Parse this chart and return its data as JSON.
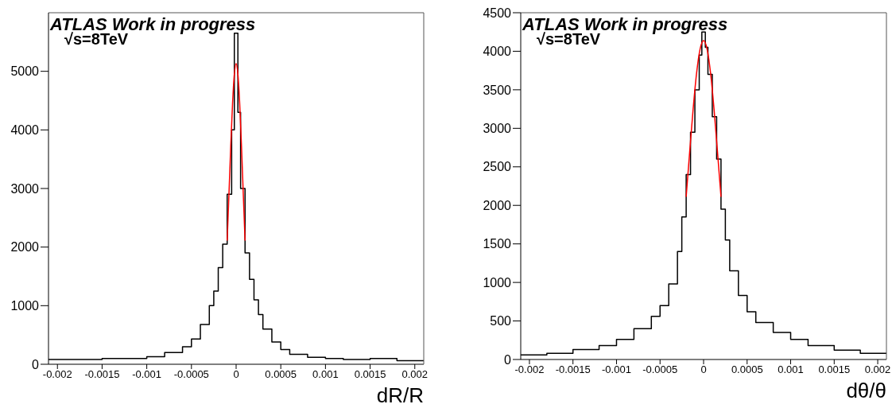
{
  "chart_data": [
    {
      "type": "histogram",
      "xlabel": "dR/R",
      "annotations": [
        "ATLAS Work in progress",
        "√s=8TeV"
      ],
      "bins": [
        -0.0021,
        -0.0018,
        -0.0015,
        -0.0012,
        -0.001,
        -0.0008,
        -0.0006,
        -0.0005,
        -0.0004,
        -0.0003,
        -0.00025,
        -0.0002,
        -0.00015,
        -0.0001,
        -5e-05,
        -2e-05,
        2e-05,
        5e-05,
        0.0001,
        0.00015,
        0.0002,
        0.00025,
        0.0003,
        0.0004,
        0.0005,
        0.0006,
        0.0008,
        0.001,
        0.0012,
        0.0015,
        0.0018,
        0.0021
      ],
      "series": [
        {
          "color": "#000000",
          "values": [
            80,
            80,
            100,
            100,
            130,
            200,
            300,
            430,
            680,
            1000,
            1250,
            1650,
            2050,
            2900,
            4000,
            5650,
            4300,
            3000,
            1900,
            1450,
            1100,
            850,
            600,
            380,
            250,
            170,
            120,
            100,
            80,
            100,
            60
          ]
        },
        {
          "type": "line",
          "color": "#ff0000",
          "x": [
            -0.0001,
            -8e-05,
            -6e-05,
            -4e-05,
            -2e-05,
            0,
            2e-05,
            4e-05,
            6e-05,
            8e-05,
            0.0001
          ],
          "values": [
            2110,
            2910,
            3730,
            4450,
            4950,
            5130,
            4950,
            4450,
            3730,
            2910,
            2110
          ]
        }
      ],
      "xlim": [
        -0.0021,
        0.0021
      ],
      "ylim": [
        0,
        6000
      ],
      "xticks": [
        -0.002,
        -0.0015,
        -0.001,
        -0.0005,
        0,
        0.0005,
        0.001,
        0.0015,
        0.002
      ],
      "yticks": [
        0,
        1000,
        2000,
        3000,
        4000,
        5000
      ]
    },
    {
      "type": "histogram",
      "xlabel": "dθ/θ",
      "annotations": [
        "ATLAS Work in progress",
        "√s=8TeV"
      ],
      "bins": [
        -0.0021,
        -0.0018,
        -0.0015,
        -0.0012,
        -0.001,
        -0.0008,
        -0.0006,
        -0.0005,
        -0.0004,
        -0.0003,
        -0.00025,
        -0.0002,
        -0.00015,
        -0.0001,
        -5e-05,
        -2e-05,
        2e-05,
        5e-05,
        0.0001,
        0.00015,
        0.0002,
        0.00025,
        0.0003,
        0.0004,
        0.0005,
        0.0006,
        0.0008,
        0.001,
        0.0012,
        0.0015,
        0.0018,
        0.0021
      ],
      "series": [
        {
          "color": "#000000",
          "values": [
            60,
            80,
            130,
            180,
            260,
            400,
            560,
            700,
            980,
            1400,
            1850,
            2400,
            2950,
            3500,
            3950,
            4250,
            4050,
            3700,
            3150,
            2600,
            1950,
            1550,
            1150,
            830,
            620,
            480,
            350,
            260,
            180,
            120,
            80
          ]
        },
        {
          "type": "line",
          "color": "#ff0000",
          "x": [
            -0.0002,
            -0.00016,
            -0.00012,
            -8e-05,
            -4e-05,
            0,
            4e-05,
            8e-05,
            0.00012,
            0.00016,
            0.0002
          ],
          "values": [
            2110,
            2690,
            3250,
            3720,
            4030,
            4140,
            4030,
            3720,
            3250,
            2690,
            2110
          ]
        }
      ],
      "xlim": [
        -0.0021,
        0.0021
      ],
      "ylim": [
        0,
        4500
      ],
      "xticks": [
        -0.002,
        -0.0015,
        -0.001,
        -0.0005,
        0,
        0.0005,
        0.001,
        0.0015,
        0.002
      ],
      "yticks": [
        0,
        500,
        1000,
        1500,
        2000,
        2500,
        3000,
        3500,
        4000,
        4500
      ]
    }
  ]
}
